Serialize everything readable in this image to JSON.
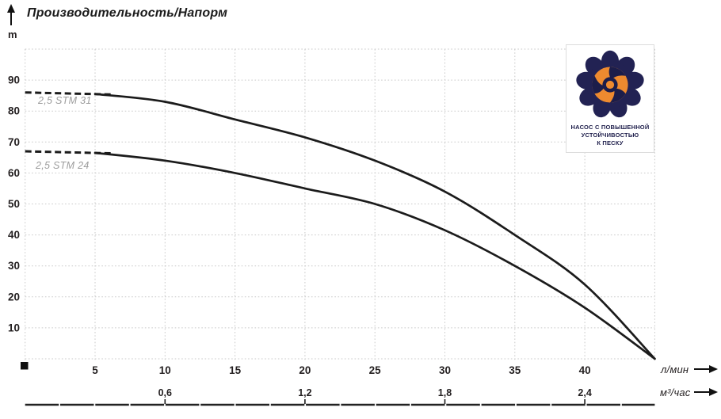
{
  "title": "Производительность/Напорм",
  "y_axis_unit": "m",
  "badge": {
    "line1": "НАСОС С ПОВЫШЕННОЙ",
    "line2": "УСТОЙЧИВОСТЬЮ",
    "line3": "К ПЕСКУ"
  },
  "colors": {
    "curve": "#1b1b1b",
    "grid": "#c9c9c9",
    "tick_text": "#231f20",
    "series_label": "#9c9c9c",
    "badge_navy": "#222253",
    "badge_orange": "#ee8a2f"
  },
  "chart_data": {
    "type": "line",
    "title": "Производительность/Напорм",
    "ylabel": "m",
    "xlabel_primary": "л/мин",
    "xlabel_secondary": "м³/час",
    "xlim": [
      0,
      45
    ],
    "ylim": [
      0,
      100
    ],
    "grid": true,
    "y_ticks": [
      10,
      20,
      30,
      40,
      50,
      60,
      70,
      80,
      90
    ],
    "x_ticks_lmin": [
      5,
      10,
      15,
      20,
      25,
      30,
      35,
      40
    ],
    "x_ticks_m3h": [
      {
        "value": 10,
        "label": "0,6"
      },
      {
        "value": 20,
        "label": "1,2"
      },
      {
        "value": 30,
        "label": "1,8"
      },
      {
        "value": 40,
        "label": "2,4"
      }
    ],
    "series": [
      {
        "name": "2,5 STM 31",
        "dash_until": 6.2,
        "points": [
          [
            0,
            86
          ],
          [
            5,
            85.5
          ],
          [
            10,
            83
          ],
          [
            15,
            77.3
          ],
          [
            20,
            71.5
          ],
          [
            25,
            64
          ],
          [
            30,
            54
          ],
          [
            35,
            40
          ],
          [
            40,
            24
          ],
          [
            45,
            0
          ]
        ]
      },
      {
        "name": "2,5 STM 24",
        "dash_until": 6.2,
        "points": [
          [
            0,
            67
          ],
          [
            5,
            66.5
          ],
          [
            10,
            64
          ],
          [
            15,
            60
          ],
          [
            20,
            55
          ],
          [
            25,
            50
          ],
          [
            30,
            41.5
          ],
          [
            35,
            30
          ],
          [
            40,
            16.5
          ],
          [
            45,
            0
          ]
        ]
      }
    ]
  }
}
